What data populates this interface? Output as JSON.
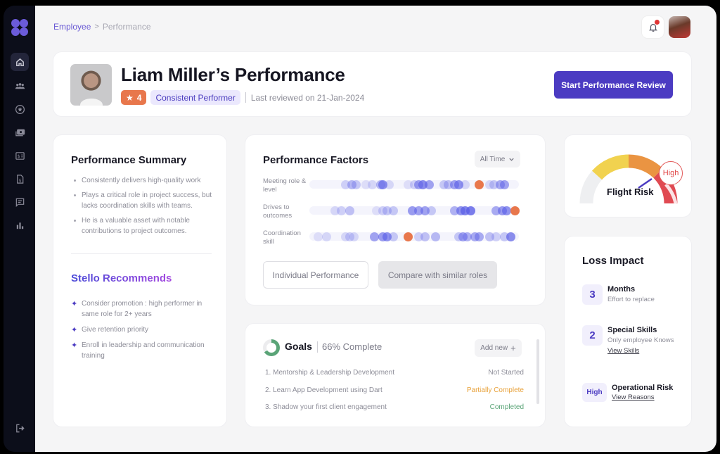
{
  "sidebar": {
    "items": [
      {
        "id": "home",
        "icon": "home-icon",
        "active": true
      },
      {
        "id": "team",
        "icon": "team-icon",
        "active": false
      },
      {
        "id": "performance",
        "icon": "star-icon",
        "active": false
      },
      {
        "id": "payroll",
        "icon": "cash-icon",
        "active": false
      },
      {
        "id": "expenses",
        "icon": "dollar-card-icon",
        "active": false
      },
      {
        "id": "documents",
        "icon": "dollar-document-icon",
        "active": false
      },
      {
        "id": "messages",
        "icon": "chat-icon",
        "active": false
      },
      {
        "id": "reports",
        "icon": "bar-chart-icon",
        "active": false
      }
    ],
    "logout_icon": "logout-icon"
  },
  "breadcrumb": {
    "parent": "Employee",
    "separator": ">",
    "current": "Performance"
  },
  "header": {
    "title": "Liam Miller’s Performance",
    "rating": "4",
    "tag": "Consistent Performer",
    "last_reviewed": "Last reviewed on 21-Jan-2024",
    "primary_button": "Start Performance Review"
  },
  "summary": {
    "title": "Performance Summary",
    "bullets": [
      "Consistently delivers high-quality work",
      "Plays a critical role in project success, but lacks coordination skills with teams.",
      "He is a valuable asset with notable contributions to project outcomes."
    ],
    "recommend_title": "Stello Recommends",
    "recommendations": [
      "Consider promotion : high performer in same role for 2+ years",
      "Give retention priority",
      "Enroll in leadership and communication training"
    ]
  },
  "factors": {
    "title": "Performance Factors",
    "filter": "All Time",
    "rows": [
      {
        "label": "Meeting role & level",
        "highlight_pct": 81
      },
      {
        "label": "Drives to outcomes",
        "highlight_pct": 98
      },
      {
        "label": "Coordination skill",
        "highlight_pct": 47
      }
    ],
    "buttons": {
      "individual": "Individual Performance",
      "compare": "Compare with similar roles"
    },
    "colors": {
      "dot": "#5b5fe6",
      "highlight": "#e8774c",
      "track": "#f4f4fc"
    }
  },
  "goals": {
    "title": "Goals",
    "complete": "66% Complete",
    "add_new": "Add new",
    "items": [
      {
        "name": "1. Mentorship & Leadership Development",
        "status": "Not Started"
      },
      {
        "name": "2. Learn App Development using Dart",
        "status": "Partially Complete"
      },
      {
        "name": "3. Shadow your first client engagement",
        "status": "Completed"
      }
    ]
  },
  "flight_risk": {
    "label": "Flight Risk",
    "level": "High"
  },
  "loss_impact": {
    "title": "Loss Impact",
    "items": [
      {
        "value": "3",
        "heading": "Months",
        "sub": "Effort to replace"
      },
      {
        "value": "2",
        "heading": "Special Skills",
        "sub": "Only employee Knows",
        "link": "View Skills"
      },
      {
        "value": "High",
        "heading": "Operational Risk",
        "link": "View Reasons"
      }
    ]
  }
}
